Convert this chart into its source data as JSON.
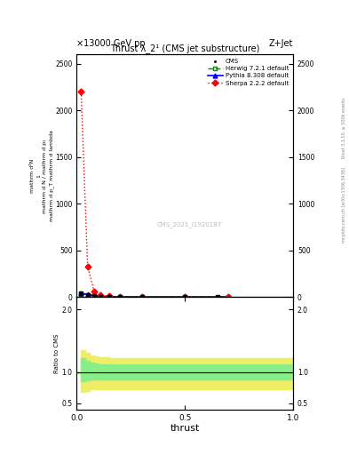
{
  "title": "Thrust λ_2¹ (CMS jet substructure)",
  "top_left_label": "×13000 GeV pp",
  "top_right_label": "Z+Jet",
  "watermark": "CMS_2021_I1920187",
  "right_label_top": "Rivet 3.1.10, ≥ 500k events",
  "right_label_bottom": "mcplots.cern.ch [arXiv:1306.3436]",
  "xlabel": "thrust",
  "ylabel_main_line1": "mathrm d²N",
  "ylabel_ratio": "Ratio to CMS",
  "ylim_main": [
    0,
    2600
  ],
  "ylim_ratio": [
    0.4,
    2.2
  ],
  "yticks_main": [
    0,
    500,
    1000,
    1500,
    2000,
    2500
  ],
  "yticks_ratio": [
    0.5,
    1.0,
    2.0
  ],
  "xlim": [
    0.0,
    1.0
  ],
  "xticks": [
    0.0,
    0.5,
    1.0
  ],
  "sherpa_x": [
    0.02,
    0.05,
    0.08,
    0.11,
    0.15,
    0.2,
    0.3,
    0.5,
    0.7
  ],
  "sherpa_y": [
    2200,
    330,
    60,
    20,
    8,
    3,
    1.5,
    1,
    1
  ],
  "herwig_x": [
    0.02,
    0.05,
    0.08,
    0.11,
    0.15,
    0.2,
    0.3,
    0.5,
    0.7
  ],
  "herwig_y": [
    35,
    25,
    12,
    6,
    3,
    2,
    1.2,
    1,
    1
  ],
  "pythia_x": [
    0.02,
    0.05,
    0.08,
    0.11,
    0.15,
    0.2,
    0.3,
    0.5,
    0.7
  ],
  "pythia_y": [
    38,
    28,
    13,
    7,
    3.5,
    2.2,
    1.3,
    1,
    1
  ],
  "cms_x": [
    0.02,
    0.05,
    0.08,
    0.11,
    0.15,
    0.2,
    0.3,
    0.5,
    0.65
  ],
  "cms_y": [
    38,
    25,
    12,
    6,
    3,
    2,
    1.2,
    1,
    1
  ],
  "ratio_x_edges": [
    0.0,
    0.02,
    0.04,
    0.06,
    0.08,
    0.1,
    0.15,
    0.2,
    0.25,
    0.3,
    0.4,
    0.5,
    0.6,
    0.7,
    0.8,
    0.9,
    1.0
  ],
  "green_upper": [
    1.0,
    1.22,
    1.18,
    1.15,
    1.13,
    1.12,
    1.12,
    1.12,
    1.12,
    1.12,
    1.12,
    1.12,
    1.12,
    1.12,
    1.12,
    1.12,
    1.12
  ],
  "green_lower": [
    1.0,
    0.85,
    0.87,
    0.88,
    0.88,
    0.88,
    0.88,
    0.88,
    0.88,
    0.88,
    0.88,
    0.88,
    0.88,
    0.88,
    0.88,
    0.88,
    0.88
  ],
  "yellow_upper": [
    1.0,
    1.35,
    1.3,
    1.27,
    1.25,
    1.23,
    1.22,
    1.22,
    1.22,
    1.22,
    1.22,
    1.22,
    1.22,
    1.22,
    1.22,
    1.22,
    1.22
  ],
  "yellow_lower": [
    1.0,
    0.68,
    0.7,
    0.72,
    0.73,
    0.73,
    0.73,
    0.73,
    0.73,
    0.73,
    0.73,
    0.73,
    0.73,
    0.73,
    0.73,
    0.73,
    0.73
  ],
  "color_sherpa": "#ff0000",
  "color_herwig": "#008800",
  "color_pythia": "#0000ff",
  "color_cms": "#000000",
  "color_green_band": "#88ee88",
  "color_yellow_band": "#eeee66"
}
